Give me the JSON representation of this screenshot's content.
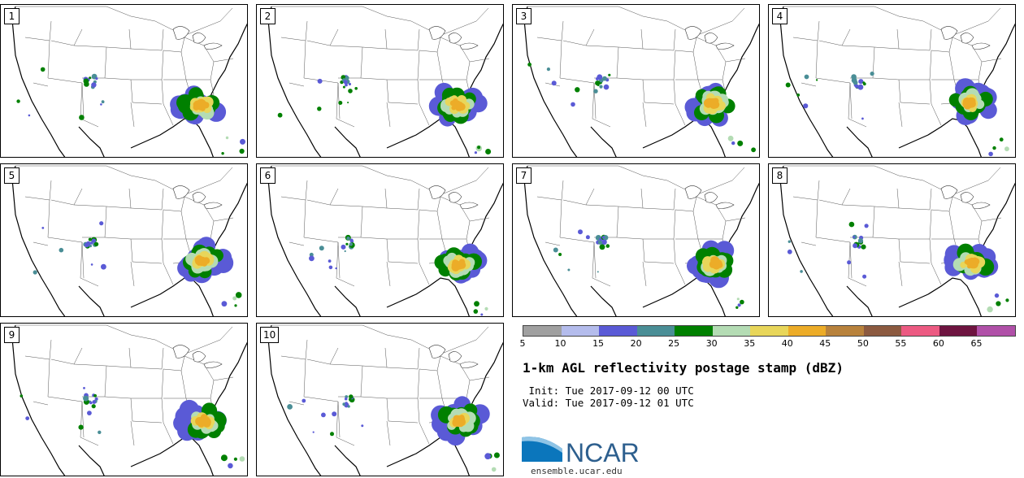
{
  "panels": [
    {
      "label": "1"
    },
    {
      "label": "2"
    },
    {
      "label": "3"
    },
    {
      "label": "4"
    },
    {
      "label": "5"
    },
    {
      "label": "6"
    },
    {
      "label": "7"
    },
    {
      "label": "8"
    },
    {
      "label": "9"
    },
    {
      "label": "10"
    }
  ],
  "colorbar": {
    "colors": [
      "#a0a0a0",
      "#b4bcec",
      "#5a5ad6",
      "#4a8e96",
      "#008000",
      "#b4dcb4",
      "#e8d65a",
      "#ecac28",
      "#b8823c",
      "#8c5a40",
      "#ec5a82",
      "#6e1440",
      "#b050a8"
    ],
    "ticks": [
      "5",
      "10",
      "15",
      "20",
      "25",
      "30",
      "35",
      "40",
      "45",
      "50",
      "55",
      "60",
      "65"
    ]
  },
  "title": "1-km AGL reflectivity postage stamp (dBZ)",
  "init_line": " Init: Tue 2017-09-12 00 UTC",
  "valid_line": "Valid: Tue 2017-09-12 01 UTC",
  "logo": {
    "text": "NCAR",
    "color": "#0b76bc"
  },
  "website": "ensemble.ucar.edu"
}
